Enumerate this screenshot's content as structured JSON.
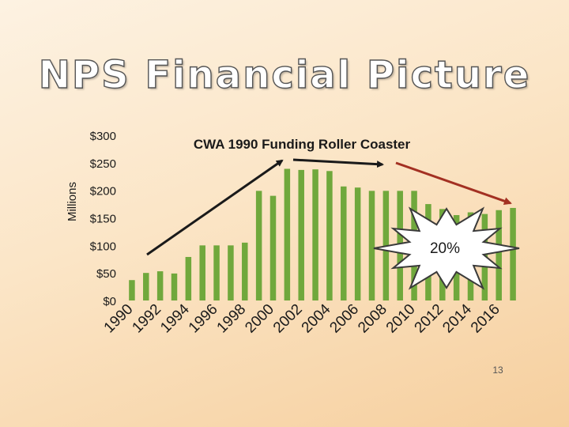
{
  "slide": {
    "title": "NPS Financial Picture",
    "page_number": "13"
  },
  "colors": {
    "bar": "#70a83c",
    "rise_arrow": "#1a1a1a",
    "flat_arrow": "#1a1a1a",
    "decline_arrow": "#a33022",
    "callout_fill": "#ffffff",
    "callout_stroke": "#3a3a3a"
  },
  "chart_data": {
    "type": "bar",
    "title": "CWA 1990 Funding Roller Coaster",
    "xlabel": "",
    "ylabel": "Millions",
    "ylim": [
      0,
      300
    ],
    "yticks": [
      0,
      50,
      100,
      150,
      200,
      250,
      300
    ],
    "ytick_labels": [
      "$0",
      "$50",
      "$100",
      "$150",
      "$200",
      "$250",
      "$300"
    ],
    "grid": false,
    "categories": [
      "1990",
      "1991",
      "1992",
      "1993",
      "1994",
      "1995",
      "1996",
      "1997",
      "1998",
      "1999",
      "2000",
      "2001",
      "2002",
      "2003",
      "2004",
      "2005",
      "2006",
      "2007",
      "2008",
      "2009",
      "2010",
      "2011",
      "2012",
      "2013",
      "2014",
      "2015",
      "2016",
      "2017"
    ],
    "xtick_labels": [
      "1990",
      "1992",
      "1994",
      "1996",
      "1998",
      "2000",
      "2002",
      "2004",
      "2006",
      "2008",
      "2010",
      "2012",
      "2014",
      "2016"
    ],
    "values": [
      37,
      50,
      53,
      49,
      79,
      100,
      100,
      100,
      105,
      199,
      190,
      239,
      237,
      238,
      235,
      207,
      205,
      199,
      199,
      199,
      199,
      175,
      166,
      155,
      160,
      157,
      164,
      168
    ],
    "annotations": {
      "callout_label": "20%"
    }
  }
}
